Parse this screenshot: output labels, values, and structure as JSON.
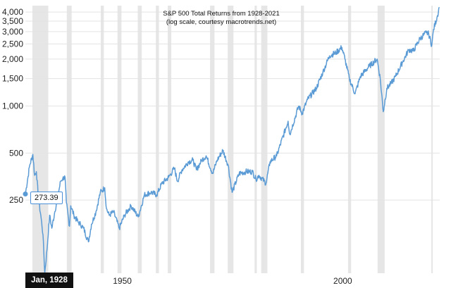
{
  "chart_data": {
    "type": "line",
    "title": "S&P 500 Total Returns from 1928-2021",
    "subtitle": "(log scale, courtesy macrotrends.net)",
    "y_scale": "log",
    "ylim": [
      85,
      4400
    ],
    "xlim": [
      1928,
      2022
    ],
    "y_ticks": [
      250,
      500,
      1000,
      1500,
      2000,
      2500,
      3000,
      3500,
      4000
    ],
    "y_tick_labels": [
      "250",
      "500",
      "1,000",
      "1,500",
      "2,000",
      "2,500",
      "3,000",
      "3,500",
      "4,000"
    ],
    "x_ticks": [
      1950,
      2000
    ],
    "x_tick_labels": [
      "1950",
      "2000"
    ],
    "grid": true,
    "line_color": "#5b9bd5",
    "recession_color": "#e6e6e6",
    "recessions": [
      [
        1929.6,
        1933.2
      ],
      [
        1937.4,
        1938.5
      ],
      [
        1945.1,
        1945.8
      ],
      [
        1948.9,
        1949.8
      ],
      [
        1953.5,
        1954.4
      ],
      [
        1957.6,
        1958.3
      ],
      [
        1960.3,
        1961.1
      ],
      [
        1969.9,
        1970.9
      ],
      [
        1973.9,
        1975.2
      ],
      [
        1980.0,
        1980.5
      ],
      [
        1981.5,
        1982.9
      ],
      [
        1990.5,
        1991.2
      ],
      [
        2001.2,
        2001.9
      ],
      [
        2007.9,
        2009.5
      ],
      [
        2020.1,
        2020.4
      ]
    ],
    "series": [
      {
        "x": [
          1928.0,
          1929.0,
          1929.7,
          1930.1,
          1930.5,
          1931.0,
          1931.5,
          1932.0,
          1932.4,
          1932.9,
          1933.5,
          1934.0,
          1934.6,
          1935.3,
          1936.0,
          1936.5,
          1937.0,
          1937.3,
          1938.0,
          1938.3,
          1939.0,
          1940.0,
          1940.5,
          1941.2,
          1942.3,
          1943.0,
          1944.0,
          1945.0,
          1946.0,
          1946.4,
          1947.0,
          1948.0,
          1949.3,
          1950.5,
          1952.0,
          1953.6,
          1955.0,
          1956.5,
          1957.8,
          1959.0,
          1960.5,
          1961.8,
          1962.5,
          1963.5,
          1965.0,
          1966.0,
          1966.8,
          1968.0,
          1969.0,
          1970.5,
          1971.5,
          1972.8,
          1974.0,
          1974.9,
          1976.5,
          1978.0,
          1979.5,
          1980.3,
          1981.0,
          1982.6,
          1983.5,
          1985.0,
          1987.6,
          1988.0,
          1990.0,
          1990.8,
          1992.0,
          1994.0,
          1995.5,
          1997.0,
          1998.5,
          1999.8,
          2000.5,
          2001.5,
          2002.8,
          2004.0,
          2006.0,
          2007.8,
          2008.5,
          2009.2,
          2010.0,
          2011.0,
          2012.0,
          2013.5,
          2015.0,
          2016.0,
          2017.5,
          2018.9,
          2019.5,
          2020.2,
          2020.6,
          2021.5,
          2021.9
        ],
        "y": [
          273.39,
          420,
          490,
          360,
          380,
          250,
          200,
          150,
          85,
          120,
          200,
          165,
          205,
          260,
          330,
          345,
          350,
          240,
          170,
          230,
          200,
          180,
          175,
          165,
          135,
          175,
          210,
          280,
          300,
          220,
          200,
          210,
          165,
          200,
          230,
          195,
          270,
          280,
          270,
          320,
          350,
          400,
          330,
          390,
          440,
          450,
          390,
          450,
          480,
          370,
          450,
          520,
          420,
          280,
          370,
          380,
          380,
          340,
          360,
          320,
          440,
          480,
          800,
          660,
          1000,
          900,
          1100,
          1300,
          1650,
          2100,
          2200,
          2380,
          2000,
          1500,
          1200,
          1550,
          1800,
          2000,
          1500,
          920,
          1300,
          1400,
          1550,
          1900,
          2300,
          2250,
          2700,
          2950,
          2900,
          2450,
          3100,
          3800,
          4300
        ]
      }
    ],
    "tooltip_value": "273.39",
    "tooltip_date": "Jan, 1928"
  }
}
